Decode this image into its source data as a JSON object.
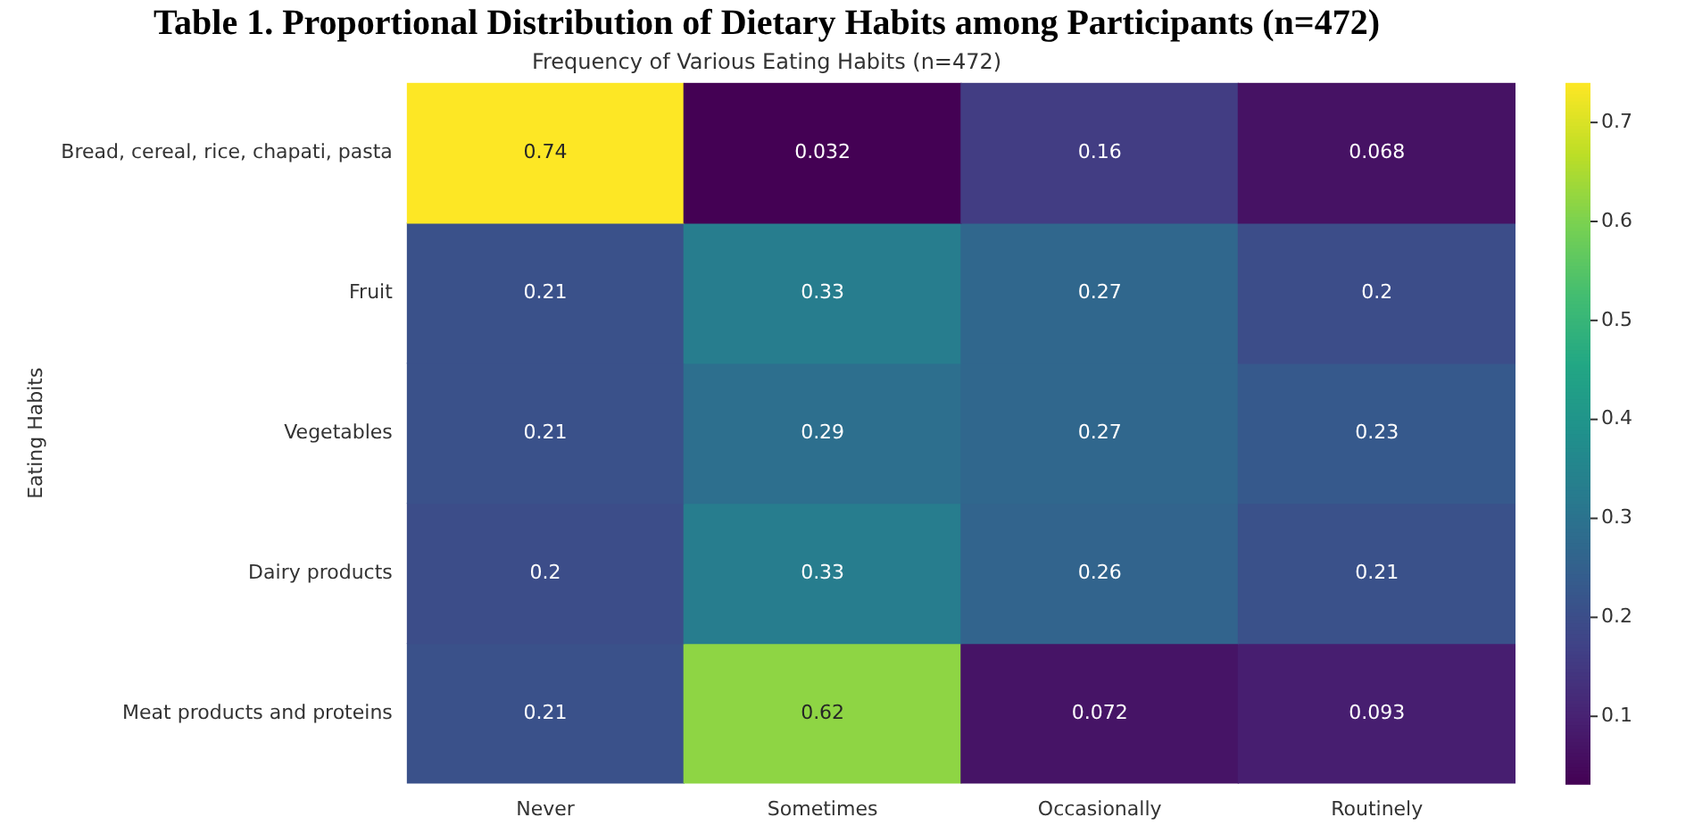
{
  "chart_data": {
    "type": "heatmap",
    "title": "Table 1. Proportional Distribution of Dietary Habits among Participants (n=472)",
    "subtitle": "Frequency of Various Eating Habits (n=472)",
    "ylabel": "Eating Habits",
    "categories": [
      "Never",
      "Sometimes",
      "Occasionally",
      "Routinely"
    ],
    "y_categories": [
      "Bread, cereal, rice, chapati, pasta",
      "Fruit",
      "Vegetables",
      "Dairy products",
      "Meat products and proteins"
    ],
    "cells": [
      [
        0.74,
        0.032,
        0.16,
        0.068
      ],
      [
        0.21,
        0.33,
        0.27,
        0.2
      ],
      [
        0.21,
        0.29,
        0.27,
        0.23
      ],
      [
        0.2,
        0.33,
        0.26,
        0.21
      ],
      [
        0.21,
        0.62,
        0.072,
        0.093
      ]
    ],
    "clim": [
      0.032,
      0.74
    ],
    "cticks": [
      0.1,
      0.2,
      0.3,
      0.4,
      0.5,
      0.6,
      0.7
    ],
    "data_labels": true
  }
}
